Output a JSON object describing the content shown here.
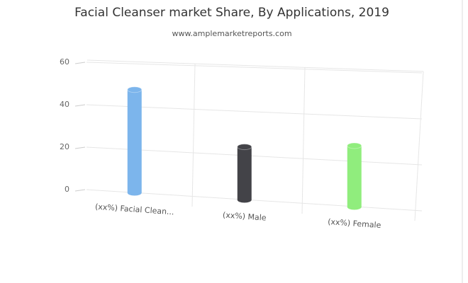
{
  "chart_data": {
    "type": "bar",
    "title": "Facial Cleanser market Share, By Applications, 2019",
    "subtitle": "www.amplemarketreports.com",
    "categories": [
      "(xx%) Facial Clean...",
      "(xx%) Male",
      "(xx%) Female"
    ],
    "series": [
      {
        "values": [
          48,
          24,
          27
        ]
      }
    ],
    "colors": [
      "#7cb5ec",
      "#434348",
      "#90ed7d"
    ],
    "ylim": [
      0,
      60
    ],
    "yticks": [
      0,
      20,
      40,
      60
    ],
    "grid": true
  }
}
